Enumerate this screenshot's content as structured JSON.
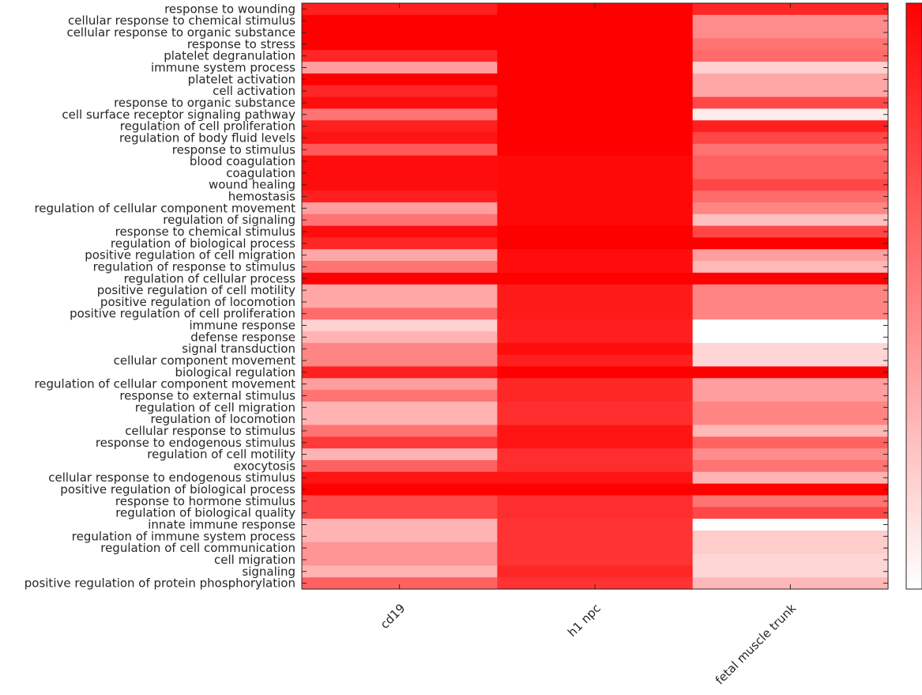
{
  "chart_data": {
    "type": "heatmap",
    "title": "",
    "xlabel": "",
    "ylabel": "",
    "columns": [
      "cd19",
      "h1 npc",
      "fetal muscle trunk"
    ],
    "rows": [
      "response to wounding",
      "cellular response to chemical stimulus",
      "cellular response to organic substance",
      "response to stress",
      "platelet degranulation",
      "immune system process",
      "platelet activation",
      "cell activation",
      "response to organic substance",
      "cell surface receptor signaling pathway",
      "regulation of cell proliferation",
      "regulation of body fluid levels",
      "response to stimulus",
      "blood coagulation",
      "coagulation",
      "wound healing",
      "hemostasis",
      "regulation of cellular component movement",
      "regulation of signaling",
      "response to chemical stimulus",
      "regulation of biological process",
      "positive regulation of cell migration",
      "regulation of response to stimulus",
      "regulation of cellular process",
      "positive regulation of cell motility",
      "positive regulation of locomotion",
      "positive regulation of cell proliferation",
      "immune response",
      "defense response",
      "signal transduction",
      "cellular component movement",
      "biological regulation",
      "regulation of cellular component movement",
      "response to external stimulus",
      "regulation of cell migration",
      "regulation of locomotion",
      "cellular response to stimulus",
      "response to endogenous stimulus",
      "regulation of cell motility",
      "exocytosis",
      "cellular response to endogenous stimulus",
      "positive regulation of biological process",
      "response to hormone stimulus",
      "regulation of biological quality",
      "innate immune response",
      "regulation of immune system process",
      "regulation of cell communication",
      "cell migration",
      "signaling",
      "positive regulation of protein phosphorylation"
    ],
    "values": [
      [
        0.88,
        1.0,
        0.85
      ],
      [
        1.0,
        1.0,
        0.45
      ],
      [
        1.0,
        1.0,
        0.45
      ],
      [
        1.0,
        1.0,
        0.55
      ],
      [
        0.85,
        1.0,
        0.58
      ],
      [
        0.38,
        1.0,
        0.18
      ],
      [
        1.0,
        1.0,
        0.35
      ],
      [
        0.85,
        1.0,
        0.35
      ],
      [
        0.95,
        1.0,
        0.72
      ],
      [
        0.55,
        1.0,
        0.08
      ],
      [
        0.88,
        1.0,
        0.88
      ],
      [
        0.92,
        1.0,
        0.72
      ],
      [
        0.65,
        1.0,
        0.55
      ],
      [
        0.95,
        0.97,
        0.62
      ],
      [
        0.95,
        0.97,
        0.62
      ],
      [
        0.95,
        0.97,
        0.72
      ],
      [
        0.88,
        0.97,
        0.58
      ],
      [
        0.38,
        0.97,
        0.48
      ],
      [
        0.55,
        0.97,
        0.25
      ],
      [
        0.95,
        1.0,
        0.72
      ],
      [
        0.85,
        1.0,
        1.0
      ],
      [
        0.35,
        0.95,
        0.38
      ],
      [
        0.55,
        0.95,
        0.28
      ],
      [
        1.0,
        1.0,
        1.0
      ],
      [
        0.35,
        0.9,
        0.48
      ],
      [
        0.35,
        0.9,
        0.48
      ],
      [
        0.58,
        0.9,
        0.48
      ],
      [
        0.18,
        0.88,
        0.0
      ],
      [
        0.3,
        0.88,
        0.0
      ],
      [
        0.48,
        0.95,
        0.16
      ],
      [
        0.48,
        0.88,
        0.16
      ],
      [
        0.88,
        1.0,
        1.0
      ],
      [
        0.38,
        0.85,
        0.38
      ],
      [
        0.55,
        0.85,
        0.38
      ],
      [
        0.3,
        0.82,
        0.48
      ],
      [
        0.3,
        0.82,
        0.48
      ],
      [
        0.55,
        0.92,
        0.28
      ],
      [
        0.78,
        0.92,
        0.62
      ],
      [
        0.3,
        0.82,
        0.45
      ],
      [
        0.62,
        0.82,
        0.55
      ],
      [
        0.92,
        0.92,
        0.3
      ],
      [
        1.0,
        1.0,
        1.0
      ],
      [
        0.72,
        0.82,
        0.55
      ],
      [
        0.72,
        0.82,
        0.72
      ],
      [
        0.3,
        0.8,
        0.0
      ],
      [
        0.3,
        0.8,
        0.2
      ],
      [
        0.42,
        0.8,
        0.2
      ],
      [
        0.42,
        0.8,
        0.16
      ],
      [
        0.3,
        0.85,
        0.16
      ],
      [
        0.62,
        0.8,
        0.28
      ]
    ],
    "color_scale": {
      "low": "#ffffff",
      "high": "#ff0000"
    },
    "colorbar": true
  }
}
